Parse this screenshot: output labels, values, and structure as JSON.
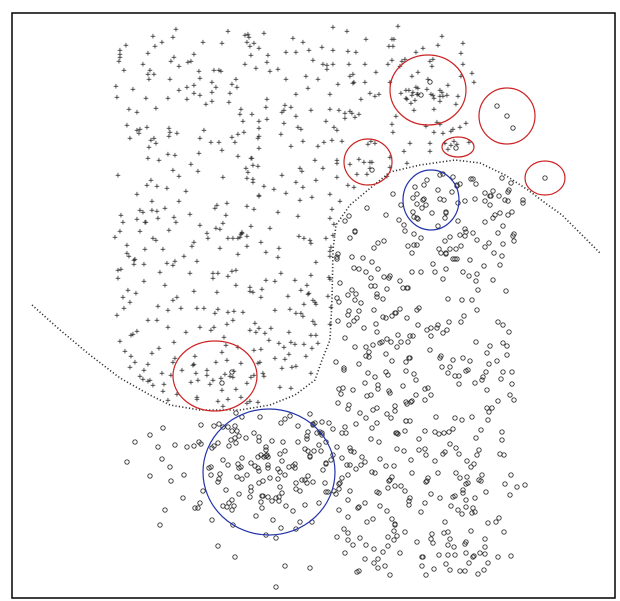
{
  "chart_data": {
    "type": "scatter",
    "title": "",
    "xlabel": "",
    "ylabel": "",
    "grid": false,
    "legend": "none",
    "axes_visible": false,
    "series": [
      {
        "marker": "plus",
        "color": "#222222",
        "points": []
      },
      {
        "marker": "circle",
        "color": "#333333",
        "points": []
      }
    ],
    "decision_boundary": {
      "style": "dotted",
      "color": "#333333",
      "points": [
        [
          32,
          305
        ],
        [
          60,
          330
        ],
        [
          90,
          355
        ],
        [
          120,
          378
        ],
        [
          150,
          395
        ],
        [
          170,
          405
        ],
        [
          200,
          410
        ],
        [
          240,
          410
        ],
        [
          270,
          405
        ],
        [
          295,
          395
        ],
        [
          315,
          380
        ],
        [
          322,
          360
        ],
        [
          330,
          340
        ],
        [
          332,
          300
        ],
        [
          333,
          250
        ],
        [
          336,
          225
        ],
        [
          350,
          205
        ],
        [
          368,
          190
        ],
        [
          390,
          172
        ],
        [
          420,
          165
        ],
        [
          455,
          160
        ],
        [
          480,
          163
        ],
        [
          505,
          175
        ],
        [
          528,
          190
        ],
        [
          548,
          205
        ],
        [
          562,
          215
        ],
        [
          575,
          228
        ],
        [
          590,
          243
        ],
        [
          600,
          253
        ]
      ]
    },
    "highlight_circles": [
      {
        "cx": 428,
        "cy": 90,
        "rx": 38,
        "ry": 35,
        "color": "#cc2222"
      },
      {
        "cx": 507,
        "cy": 116,
        "rx": 28,
        "ry": 28,
        "color": "#cc2222"
      },
      {
        "cx": 458,
        "cy": 147,
        "rx": 16,
        "ry": 10,
        "color": "#cc2222"
      },
      {
        "cx": 545,
        "cy": 178,
        "rx": 20,
        "ry": 17,
        "color": "#cc2222"
      },
      {
        "cx": 368,
        "cy": 162,
        "rx": 24,
        "ry": 23,
        "color": "#cc2222"
      },
      {
        "cx": 215,
        "cy": 376,
        "rx": 42,
        "ry": 35,
        "color": "#cc2222"
      },
      {
        "cx": 431,
        "cy": 200,
        "rx": 28,
        "ry": 30,
        "color": "#2233aa"
      },
      {
        "cx": 269,
        "cy": 472,
        "rx": 66,
        "ry": 63,
        "color": "#2233aa"
      }
    ]
  }
}
